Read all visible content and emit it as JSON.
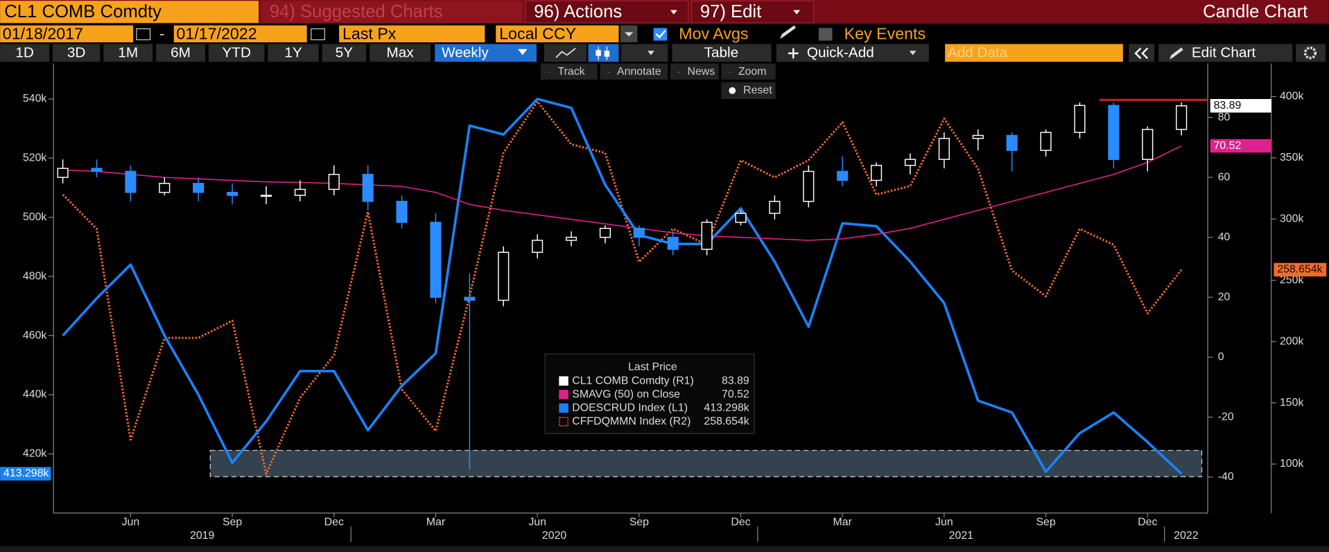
{
  "toolbar": {
    "security": "CL1 COMB Comdty",
    "suggested": "94) Suggested Charts",
    "actions": "96) Actions",
    "edit": "97) Edit",
    "chart_type": "Candle Chart",
    "start_date": "01/18/2017",
    "date_separator": "-",
    "end_date": "01/17/2022",
    "field": "Last Px",
    "currency": "Local CCY",
    "mov_avgs": "Mov Avgs",
    "key_events": "Key Events",
    "periods": [
      "1D",
      "3D",
      "1M",
      "6M",
      "YTD",
      "1Y",
      "5Y",
      "Max"
    ],
    "frequency": "Weekly",
    "table": "Table",
    "quick_add": "Quick-Add",
    "add_data": "Add Data",
    "edit_chart": "Edit Chart",
    "tools": [
      "Track",
      "Annotate",
      "News",
      "Zoom"
    ],
    "reset": "Reset"
  },
  "chart_data": {
    "type": "line",
    "legend_title": "Last Price",
    "x": [
      "2019-04",
      "2019-05",
      "2019-06",
      "2019-07",
      "2019-08",
      "2019-09",
      "2019-10",
      "2019-11",
      "2019-12",
      "2020-01",
      "2020-02",
      "2020-03",
      "2020-04",
      "2020-05",
      "2020-06",
      "2020-07",
      "2020-08",
      "2020-09",
      "2020-10",
      "2020-11",
      "2020-12",
      "2021-01",
      "2021-02",
      "2021-03",
      "2021-04",
      "2021-05",
      "2021-06",
      "2021-07",
      "2021-08",
      "2021-09",
      "2021-10",
      "2021-11",
      "2021-12",
      "2022-01"
    ],
    "xlim": [
      "2019-04",
      "2022-01"
    ],
    "xticks": [
      {
        "value": "2019-06",
        "label": "Jun"
      },
      {
        "value": "2019-09",
        "label": "Sep"
      },
      {
        "value": "2019-12",
        "label": "Dec"
      },
      {
        "value": "2020-03",
        "label": "Mar"
      },
      {
        "value": "2020-06",
        "label": "Jun"
      },
      {
        "value": "2020-09",
        "label": "Sep"
      },
      {
        "value": "2020-12",
        "label": "Dec"
      },
      {
        "value": "2021-03",
        "label": "Mar"
      },
      {
        "value": "2021-06",
        "label": "Jun"
      },
      {
        "value": "2021-09",
        "label": "Sep"
      },
      {
        "value": "2021-12",
        "label": "Dec"
      }
    ],
    "year_labels": [
      "2019",
      "2020",
      "2021",
      "2022"
    ],
    "ylim": [
      400000,
      552000
    ],
    "yticks": [
      {
        "value": 420000,
        "label": "420k"
      },
      {
        "value": 440000,
        "label": "440k"
      },
      {
        "value": 460000,
        "label": "460k"
      },
      {
        "value": 480000,
        "label": "480k"
      },
      {
        "value": 500000,
        "label": "500k"
      },
      {
        "value": 520000,
        "label": "520k"
      },
      {
        "value": 540000,
        "label": "540k"
      }
    ],
    "y2lim": [
      -52,
      98
    ],
    "y2ticks": [
      -40,
      -20,
      0,
      20,
      40,
      60,
      80
    ],
    "y3lim": [
      60000,
      427000
    ],
    "y3ticks": [
      {
        "value": 100000,
        "label": "100k"
      },
      {
        "value": 150000,
        "label": "150k"
      },
      {
        "value": 200000,
        "label": "200k"
      },
      {
        "value": 250000,
        "label": "250k"
      },
      {
        "value": 300000,
        "label": "300k"
      },
      {
        "value": 350000,
        "label": "350k"
      },
      {
        "value": 400000,
        "label": "400k"
      }
    ],
    "series": [
      {
        "name": "CL1 COMB Comdty (R1)",
        "type": "candlestick",
        "axis": "y2",
        "color": "#ffffff",
        "up_color": "#ffffff",
        "down_color": "#2a8cff",
        "open": [
          60,
          63,
          62,
          55,
          58,
          55,
          54,
          54,
          56,
          61,
          52,
          45,
          20,
          19,
          35,
          39,
          40,
          43,
          40,
          36,
          45,
          48,
          52,
          62,
          59,
          64,
          66,
          73,
          74,
          69,
          75,
          84,
          66,
          76
        ],
        "high": [
          66,
          66,
          64,
          60,
          60,
          58,
          57,
          59,
          64,
          64,
          54,
          48,
          28,
          37,
          41,
          42,
          44,
          44,
          42,
          46,
          49,
          54,
          64,
          67,
          65,
          68,
          75,
          76,
          75,
          76,
          85,
          85,
          77,
          85
        ],
        "low": [
          58,
          60,
          52,
          54,
          52,
          51,
          51,
          52,
          54,
          49,
          43,
          18,
          -37.63,
          17,
          33,
          37,
          38,
          37,
          34,
          34,
          44,
          46,
          50,
          57,
          57,
          61,
          63,
          69,
          62,
          67,
          73,
          63,
          62,
          74
        ],
        "close": [
          63,
          62,
          55,
          58,
          55,
          54,
          54,
          56,
          61,
          52,
          45,
          20,
          19,
          35,
          39,
          40,
          43,
          40,
          36,
          45,
          48,
          52,
          62,
          59,
          64,
          66,
          73,
          74,
          69,
          75,
          84,
          66,
          76,
          83.89
        ]
      },
      {
        "name": "SMAVG (50) on Close",
        "type": "line",
        "axis": "y2",
        "color": "#e0208c",
        "style": "solid",
        "values": [
          62.5,
          62,
          61,
          60,
          59.5,
          59,
          58.5,
          58.3,
          58,
          57.5,
          57,
          55,
          51,
          49,
          47.5,
          46,
          44.5,
          43,
          41.5,
          40.5,
          40,
          39.5,
          39,
          39.5,
          41,
          43,
          46,
          49,
          52,
          55,
          58,
          61,
          65,
          70.52
        ]
      },
      {
        "name": "DOESCRUD Index (L1)",
        "type": "line",
        "axis": "y",
        "color": "#1a82f7",
        "style": "solid",
        "last_label": "413.298k",
        "values": [
          460000,
          472600,
          484000,
          460000,
          440000,
          417000,
          431000,
          448000,
          448000,
          428000,
          443000,
          454000,
          531000,
          528000,
          540000,
          537000,
          511000,
          494000,
          491000,
          491000,
          503000,
          485000,
          463000,
          498000,
          497000,
          485000,
          471000,
          438000,
          434000,
          414000,
          427000,
          434000,
          424000,
          413298
        ]
      },
      {
        "name": "CFFDQMMN Index (R2)",
        "type": "line",
        "axis": "y3",
        "color": "#f26b2b",
        "style": "dotted",
        "last_label": "258.654k",
        "values": [
          320000,
          292000,
          120000,
          203000,
          203000,
          217000,
          92000,
          154000,
          189000,
          306000,
          161000,
          127000,
          237000,
          354000,
          396000,
          361000,
          354000,
          265000,
          292000,
          279000,
          348000,
          334000,
          348000,
          379000,
          320000,
          327000,
          382000,
          341000,
          258000,
          237000,
          292000,
          279000,
          223000,
          258654
        ]
      }
    ]
  }
}
